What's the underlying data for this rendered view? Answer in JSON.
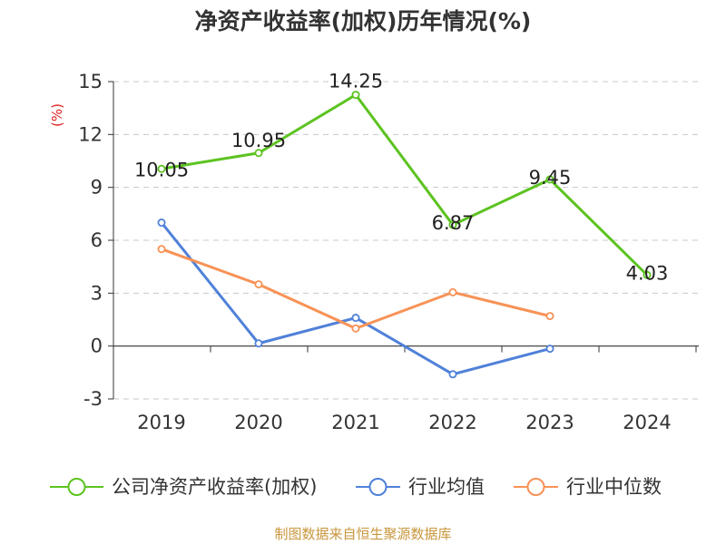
{
  "chart_data": {
    "type": "line",
    "title": "净资产收益率(加权)历年情况(%)",
    "ylabel": "(%)",
    "categories": [
      "2019",
      "2020",
      "2021",
      "2022",
      "2023",
      "2024"
    ],
    "ylim": [
      -3,
      15
    ],
    "yticks": [
      -3,
      0,
      3,
      6,
      9,
      12,
      15
    ],
    "grid": true,
    "legend_position": "bottom",
    "series": [
      {
        "name": "公司净资产收益率(加权)",
        "color": "#5cc320",
        "values": [
          10.05,
          10.95,
          14.25,
          6.87,
          9.45,
          4.03
        ],
        "labels": [
          "10.05",
          "10.95",
          "14.25",
          "6.87",
          "9.45",
          "4.03"
        ]
      },
      {
        "name": "行业均值",
        "color": "#4f81d9",
        "values": [
          7.0,
          0.15,
          1.6,
          -1.6,
          -0.15,
          null
        ]
      },
      {
        "name": "行业中位数",
        "color": "#f79256",
        "values": [
          5.5,
          3.5,
          1.0,
          3.05,
          1.7,
          null
        ]
      }
    ]
  },
  "source": "制图数据来自恒生聚源数据库"
}
